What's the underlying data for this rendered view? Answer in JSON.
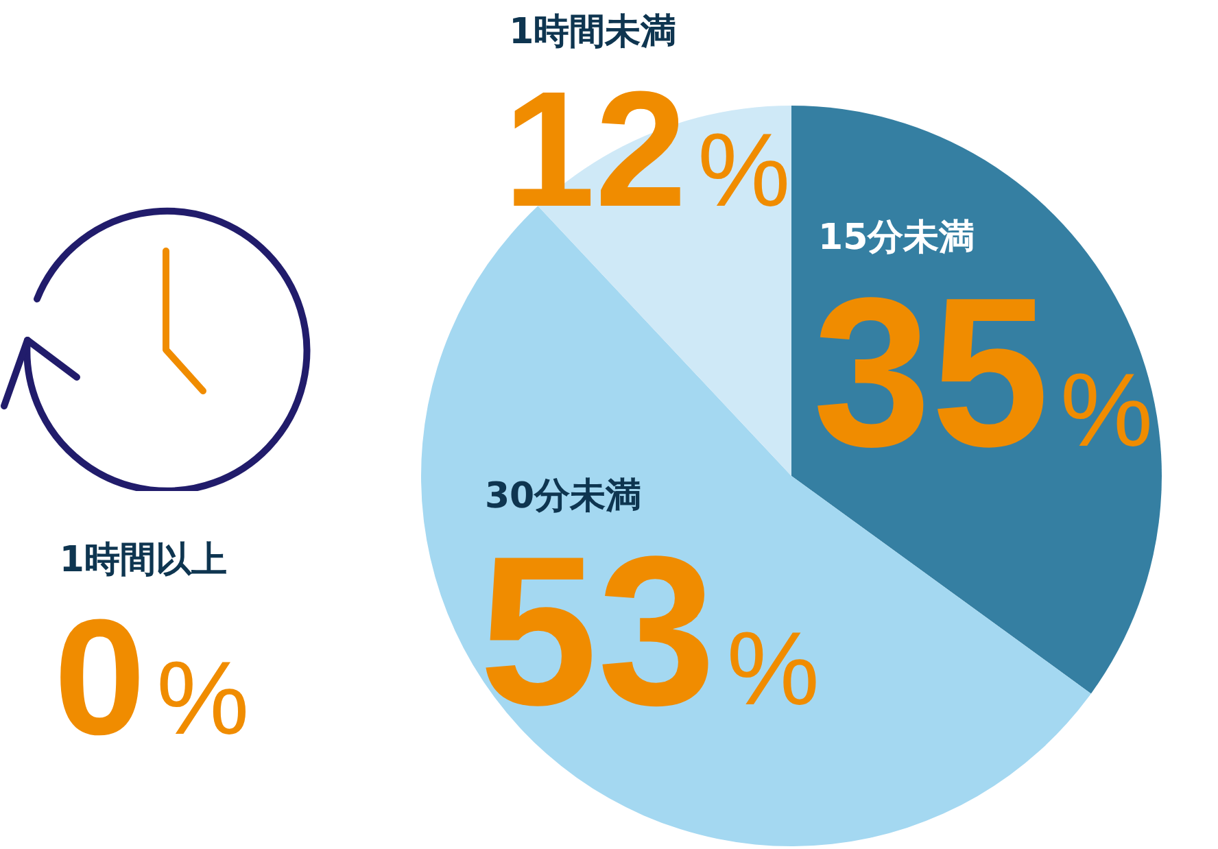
{
  "chart_data": {
    "type": "pie",
    "categories": [
      "15分未満",
      "30分未満",
      "1時間未満",
      "1時間以上"
    ],
    "values": [
      35,
      53,
      12,
      0
    ],
    "value_labels": [
      "35%",
      "53%",
      "12%",
      "0%"
    ],
    "colors": [
      "#357fa2",
      "#a4d8f1",
      "#cfe9f7",
      "#cfe9f7"
    ],
    "legend": false
  }
}
